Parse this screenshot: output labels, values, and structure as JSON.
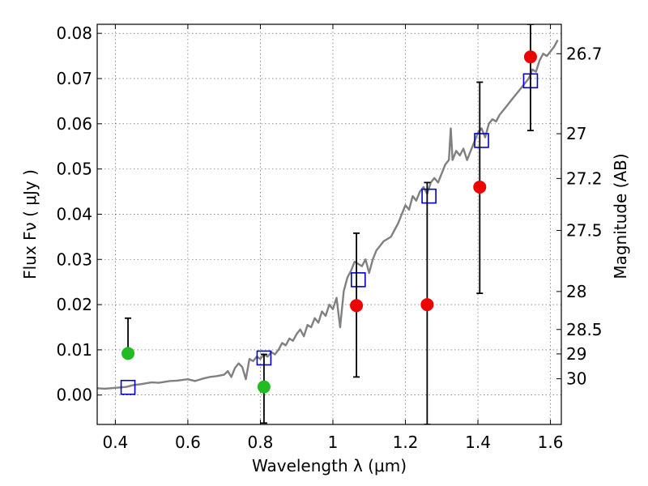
{
  "chart_data": {
    "type": "scatter",
    "xlabel": "Wavelength  λ (μm)",
    "ylabel": "Flux  Fν  ( μJy )",
    "ylabel_right": "Magnitude (AB)",
    "xlim": [
      0.35,
      1.63
    ],
    "ylim": [
      -0.0065,
      0.082
    ],
    "grid": true,
    "x_ticks": [
      0.4,
      0.6,
      0.8,
      1.0,
      1.2,
      1.4,
      1.6
    ],
    "x_tick_labels": [
      "0.4",
      "0.6",
      "0.8",
      "1",
      "1.2",
      "1.4",
      "1.6"
    ],
    "y_ticks": [
      0.0,
      0.01,
      0.02,
      0.03,
      0.04,
      0.05,
      0.06,
      0.07,
      0.08
    ],
    "y_tick_labels": [
      "0.00",
      "0.01",
      "0.02",
      "0.03",
      "0.04",
      "0.05",
      "0.06",
      "0.07",
      "0.08"
    ],
    "right_ticks": [
      {
        "flux": 0.0755,
        "label": "26.7"
      },
      {
        "flux": 0.0578,
        "label": "27"
      },
      {
        "flux": 0.0479,
        "label": "27.2"
      },
      {
        "flux": 0.0364,
        "label": "27.5"
      },
      {
        "flux": 0.0229,
        "label": "28"
      },
      {
        "flux": 0.0145,
        "label": "28.5"
      },
      {
        "flux": 0.0091,
        "label": "29"
      },
      {
        "flux": 0.0036,
        "label": "30"
      }
    ],
    "series": [
      {
        "kind": "line",
        "color": "#808080",
        "x": [
          0.35,
          0.37,
          0.4,
          0.43,
          0.45,
          0.47,
          0.5,
          0.52,
          0.55,
          0.57,
          0.6,
          0.62,
          0.64,
          0.66,
          0.68,
          0.7,
          0.71,
          0.72,
          0.73,
          0.74,
          0.75,
          0.76,
          0.77,
          0.78,
          0.79,
          0.8,
          0.81,
          0.82,
          0.83,
          0.84,
          0.85,
          0.86,
          0.87,
          0.88,
          0.89,
          0.9,
          0.91,
          0.92,
          0.93,
          0.94,
          0.95,
          0.96,
          0.97,
          0.98,
          0.99,
          1.0,
          1.01,
          1.02,
          1.03,
          1.04,
          1.05,
          1.06,
          1.07,
          1.08,
          1.09,
          1.1,
          1.11,
          1.12,
          1.13,
          1.14,
          1.15,
          1.16,
          1.17,
          1.18,
          1.19,
          1.2,
          1.21,
          1.22,
          1.23,
          1.24,
          1.25,
          1.26,
          1.27,
          1.28,
          1.29,
          1.3,
          1.31,
          1.32,
          1.325,
          1.33,
          1.34,
          1.35,
          1.36,
          1.37,
          1.38,
          1.39,
          1.4,
          1.41,
          1.42,
          1.43,
          1.44,
          1.45,
          1.46,
          1.47,
          1.48,
          1.49,
          1.5,
          1.51,
          1.52,
          1.53,
          1.54,
          1.55,
          1.56,
          1.57,
          1.58,
          1.59,
          1.6,
          1.61,
          1.62
        ],
        "y": [
          0.0015,
          0.0014,
          0.0016,
          0.0018,
          0.0022,
          0.0024,
          0.0028,
          0.0027,
          0.0031,
          0.0032,
          0.0035,
          0.0031,
          0.0036,
          0.004,
          0.0042,
          0.0045,
          0.0053,
          0.004,
          0.006,
          0.007,
          0.0062,
          0.0035,
          0.008,
          0.0075,
          0.0085,
          0.008,
          0.009,
          0.0085,
          0.0095,
          0.009,
          0.01,
          0.0115,
          0.011,
          0.0125,
          0.012,
          0.0135,
          0.0145,
          0.013,
          0.0155,
          0.015,
          0.017,
          0.016,
          0.0185,
          0.0175,
          0.02,
          0.019,
          0.0215,
          0.015,
          0.023,
          0.026,
          0.0275,
          0.0295,
          0.029,
          0.0285,
          0.03,
          0.027,
          0.03,
          0.032,
          0.033,
          0.034,
          0.0345,
          0.035,
          0.0365,
          0.038,
          0.04,
          0.042,
          0.041,
          0.044,
          0.043,
          0.045,
          0.046,
          0.0445,
          0.047,
          0.048,
          0.047,
          0.049,
          0.051,
          0.052,
          0.059,
          0.052,
          0.054,
          0.053,
          0.0545,
          0.052,
          0.054,
          0.056,
          0.058,
          0.059,
          0.057,
          0.06,
          0.061,
          0.0605,
          0.062,
          0.063,
          0.064,
          0.065,
          0.066,
          0.067,
          0.068,
          0.069,
          0.07,
          0.072,
          0.0715,
          0.074,
          0.0755,
          0.075,
          0.076,
          0.077,
          0.0785
        ]
      },
      {
        "kind": "squares",
        "color": "#0000cc",
        "x": [
          0.435,
          0.81,
          1.07,
          1.265,
          1.41,
          1.545
        ],
        "y": [
          0.0017,
          0.0082,
          0.0255,
          0.044,
          0.0563,
          0.0695
        ]
      },
      {
        "kind": "circles",
        "color": "#22bb22",
        "x": [
          0.435,
          0.81
        ],
        "y": [
          0.0092,
          0.0018
        ],
        "err_low": [
          null,
          -0.0062
        ],
        "err_high": [
          0.017,
          0.009
        ]
      },
      {
        "kind": "circles",
        "color": "#ee0000",
        "x": [
          1.065,
          1.26,
          1.405,
          1.545
        ],
        "y": [
          0.0198,
          0.02,
          0.046,
          0.0748
        ],
        "err_low": [
          0.004,
          -0.0065,
          0.0225,
          0.0585
        ],
        "err_high": [
          0.0358,
          0.047,
          0.0692,
          0.082
        ]
      }
    ]
  }
}
